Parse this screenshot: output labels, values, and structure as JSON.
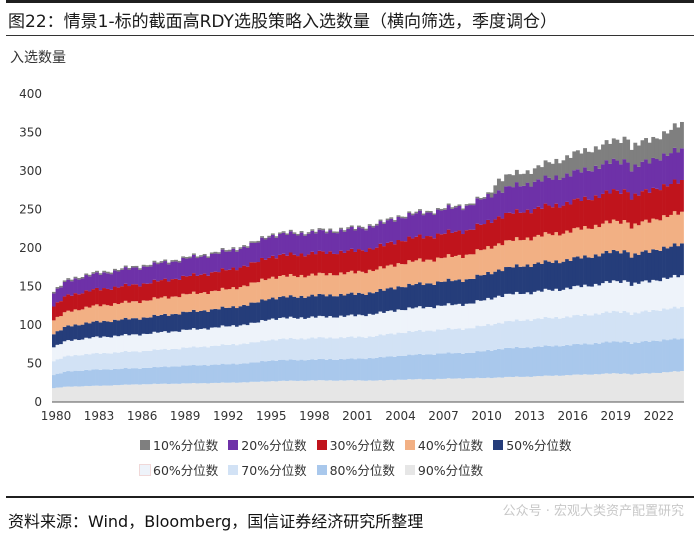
{
  "figure": {
    "title": "图22：情景1-标的截面高RDY选股策略入选数量（横向筛选，季度调仓）",
    "source": "资料来源：Wind，Bloomberg，国信证券经济研究所整理",
    "watermark": "公众号 · 宏观大类资产配置研究"
  },
  "chart_data": {
    "type": "area",
    "stacked": true,
    "title": "情景1-标的截面高RDY选股策略入选数量（横向筛选，季度调仓）",
    "ylabel": "入选数量",
    "xlabel": "",
    "ylim": [
      0,
      400
    ],
    "yticks": [
      "0",
      "50",
      "100",
      "150",
      "200",
      "250",
      "300",
      "350",
      "400"
    ],
    "xticks": [
      "1980",
      "1983",
      "1986",
      "1989",
      "1992",
      "1995",
      "1998",
      "2001",
      "2004",
      "2007",
      "2010",
      "2013",
      "2016",
      "2019",
      "2022"
    ],
    "x_range": [
      1980,
      2023.75
    ],
    "legend_position": "bottom",
    "anchor_years": [
      1980,
      1981,
      1983,
      1986,
      1989,
      1992,
      1994,
      1995,
      1998,
      2001,
      2002,
      2003,
      2004,
      2007,
      2009,
      2010,
      2011,
      2013,
      2016,
      2019,
      2020,
      2020.25,
      2022,
      2023,
      2023.75
    ],
    "series": [
      {
        "name": "90%分位数",
        "color": "#e6e6e6",
        "anchor_totals": [
          18,
          20,
          21,
          23,
          24,
          25,
          26,
          27,
          28,
          28,
          28,
          28,
          29,
          30,
          31,
          31,
          32,
          33,
          35,
          37,
          37,
          36,
          38,
          39,
          40
        ]
      },
      {
        "name": "80%分位数",
        "color": "#a9c8ec",
        "anchor_totals": [
          35,
          40,
          42,
          44,
          47,
          49,
          51,
          54,
          55,
          56,
          57,
          58,
          60,
          63,
          64,
          66,
          69,
          71,
          74,
          78,
          79,
          76,
          80,
          81,
          82
        ]
      },
      {
        "name": "70%分位数",
        "color": "#d2e2f5",
        "anchor_totals": [
          53,
          60,
          63,
          66,
          70,
          74,
          77,
          81,
          83,
          84,
          85,
          87,
          90,
          94,
          96,
          99,
          103,
          107,
          111,
          117,
          118,
          114,
          120,
          121,
          123
        ]
      },
      {
        "name": "60%分位数",
        "color": "#eef3fa",
        "anchor_totals": [
          71,
          80,
          84,
          88,
          93,
          98,
          102,
          108,
          110,
          112,
          114,
          116,
          120,
          125,
          128,
          132,
          138,
          142,
          148,
          156,
          158,
          152,
          159,
          161,
          164
        ]
      },
      {
        "name": "50%分位数",
        "color": "#253d7a",
        "anchor_totals": [
          88,
          99,
          104,
          109,
          116,
          122,
          128,
          135,
          138,
          140,
          142,
          145,
          150,
          156,
          160,
          165,
          172,
          178,
          185,
          195,
          197,
          189,
          199,
          201,
          205
        ]
      },
      {
        "name": "40%分位数",
        "color": "#f2b084",
        "anchor_totals": [
          106,
          118,
          125,
          131,
          139,
          146,
          154,
          162,
          165,
          168,
          171,
          174,
          180,
          187,
          192,
          198,
          206,
          213,
          222,
          234,
          236,
          227,
          239,
          242,
          246
        ]
      },
      {
        "name": "30%分位数",
        "color": "#c0141c",
        "anchor_totals": [
          124,
          139,
          146,
          153,
          162,
          171,
          180,
          189,
          193,
          196,
          199,
          203,
          210,
          218,
          224,
          231,
          241,
          249,
          259,
          273,
          276,
          265,
          279,
          282,
          287
        ]
      },
      {
        "name": "20%分位数",
        "color": "#6e31a8",
        "anchor_totals": [
          141,
          158,
          166,
          175,
          185,
          195,
          205,
          216,
          220,
          224,
          228,
          232,
          240,
          249,
          256,
          264,
          275,
          284,
          296,
          312,
          315,
          302,
          318,
          322,
          328
        ]
      },
      {
        "name": "10%分位数",
        "color": "#7f7f7f",
        "anchor_totals": [
          125,
          140,
          150,
          162,
          170,
          178,
          192,
          215,
          220,
          218,
          222,
          228,
          240,
          248,
          252,
          262,
          290,
          300,
          320,
          338,
          345,
          330,
          345,
          352,
          362
        ]
      }
    ]
  },
  "legend": {
    "rows": [
      [
        {
          "label": "10%分位数",
          "color": "#7f7f7f"
        },
        {
          "label": "20%分位数",
          "color": "#6e31a8"
        },
        {
          "label": "30%分位数",
          "color": "#c0141c"
        },
        {
          "label": "40%分位数",
          "color": "#f2b084"
        },
        {
          "label": "50%分位数",
          "color": "#253d7a"
        }
      ],
      [
        {
          "label": "60%分位数",
          "color": "#eef3fa"
        },
        {
          "label": "70%分位数",
          "color": "#d2e2f5"
        },
        {
          "label": "80%分位数",
          "color": "#a9c8ec"
        },
        {
          "label": "90%分位数",
          "color": "#e6e6e6"
        }
      ]
    ]
  }
}
